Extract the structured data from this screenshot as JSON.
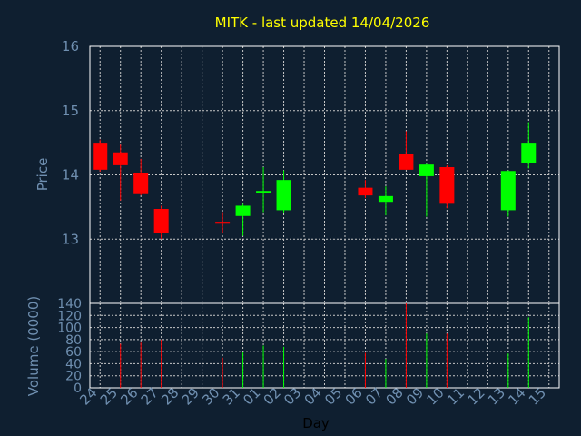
{
  "colors": {
    "background": "#0f1f30",
    "plot_border": "#ffffff",
    "grid": "#c8c8c8",
    "title": "#ffff00",
    "axis_text": "#6f8fb0",
    "up": "#00ff00",
    "down": "#ff0000",
    "xlabel": "#000000"
  },
  "chart_data": [
    {
      "type": "candlestick",
      "title": "MITK - last updated 14/04/2026",
      "ylabel": "Price",
      "ylim": [
        12.0,
        16.0
      ],
      "yticks": [
        13,
        14,
        15,
        16
      ],
      "grid": true,
      "days": [
        "24",
        "25",
        "26",
        "27",
        "28",
        "29",
        "30",
        "31",
        "01",
        "02",
        "03",
        "04",
        "05",
        "06",
        "07",
        "08",
        "09",
        "10",
        "11",
        "12",
        "13",
        "14",
        "15"
      ],
      "candles": [
        {
          "day": "24",
          "open": 14.5,
          "high": 14.55,
          "low": 14.05,
          "close": 14.08
        },
        {
          "day": "25",
          "open": 14.35,
          "high": 14.47,
          "low": 13.6,
          "close": 14.15
        },
        {
          "day": "26",
          "open": 14.03,
          "high": 14.25,
          "low": 13.68,
          "close": 13.7
        },
        {
          "day": "27",
          "open": 13.47,
          "high": 13.52,
          "low": 13.0,
          "close": 13.1
        },
        {
          "day": "30",
          "open": 13.27,
          "high": 13.42,
          "low": 13.1,
          "close": 13.24
        },
        {
          "day": "31",
          "open": 13.36,
          "high": 13.55,
          "low": 13.05,
          "close": 13.52
        },
        {
          "day": "01",
          "open": 13.71,
          "high": 14.12,
          "low": 13.42,
          "close": 13.75
        },
        {
          "day": "02",
          "open": 13.45,
          "high": 14.07,
          "low": 13.4,
          "close": 13.92
        },
        {
          "day": "06",
          "open": 13.8,
          "high": 13.92,
          "low": 13.64,
          "close": 13.68
        },
        {
          "day": "07",
          "open": 13.58,
          "high": 13.82,
          "low": 13.37,
          "close": 13.67
        },
        {
          "day": "08",
          "open": 14.32,
          "high": 14.68,
          "low": 14.08,
          "close": 14.08
        },
        {
          "day": "09",
          "open": 13.98,
          "high": 14.17,
          "low": 13.35,
          "close": 14.16
        },
        {
          "day": "10",
          "open": 14.12,
          "high": 14.15,
          "low": 13.48,
          "close": 13.55
        },
        {
          "day": "13",
          "open": 13.45,
          "high": 14.07,
          "low": 13.35,
          "close": 14.06
        },
        {
          "day": "14",
          "open": 14.18,
          "high": 14.82,
          "low": 14.1,
          "close": 14.5
        }
      ]
    },
    {
      "type": "bar",
      "ylabel": "Volume (0000)",
      "xlabel": "Day",
      "ylim": [
        0,
        140
      ],
      "yticks": [
        0,
        20,
        40,
        60,
        80,
        100,
        120,
        140
      ],
      "grid": true,
      "volumes": [
        {
          "day": "25",
          "value": 73,
          "direction": "down"
        },
        {
          "day": "26",
          "value": 75,
          "direction": "down"
        },
        {
          "day": "27",
          "value": 80,
          "direction": "down"
        },
        {
          "day": "30",
          "value": 50,
          "direction": "down"
        },
        {
          "day": "31",
          "value": 60,
          "direction": "up"
        },
        {
          "day": "01",
          "value": 70,
          "direction": "up"
        },
        {
          "day": "02",
          "value": 68,
          "direction": "up"
        },
        {
          "day": "06",
          "value": 58,
          "direction": "down"
        },
        {
          "day": "07",
          "value": 48,
          "direction": "up"
        },
        {
          "day": "08",
          "value": 140,
          "direction": "down"
        },
        {
          "day": "09",
          "value": 90,
          "direction": "up"
        },
        {
          "day": "10",
          "value": 90,
          "direction": "down"
        },
        {
          "day": "13",
          "value": 57,
          "direction": "up"
        },
        {
          "day": "14",
          "value": 117,
          "direction": "up"
        }
      ]
    }
  ]
}
